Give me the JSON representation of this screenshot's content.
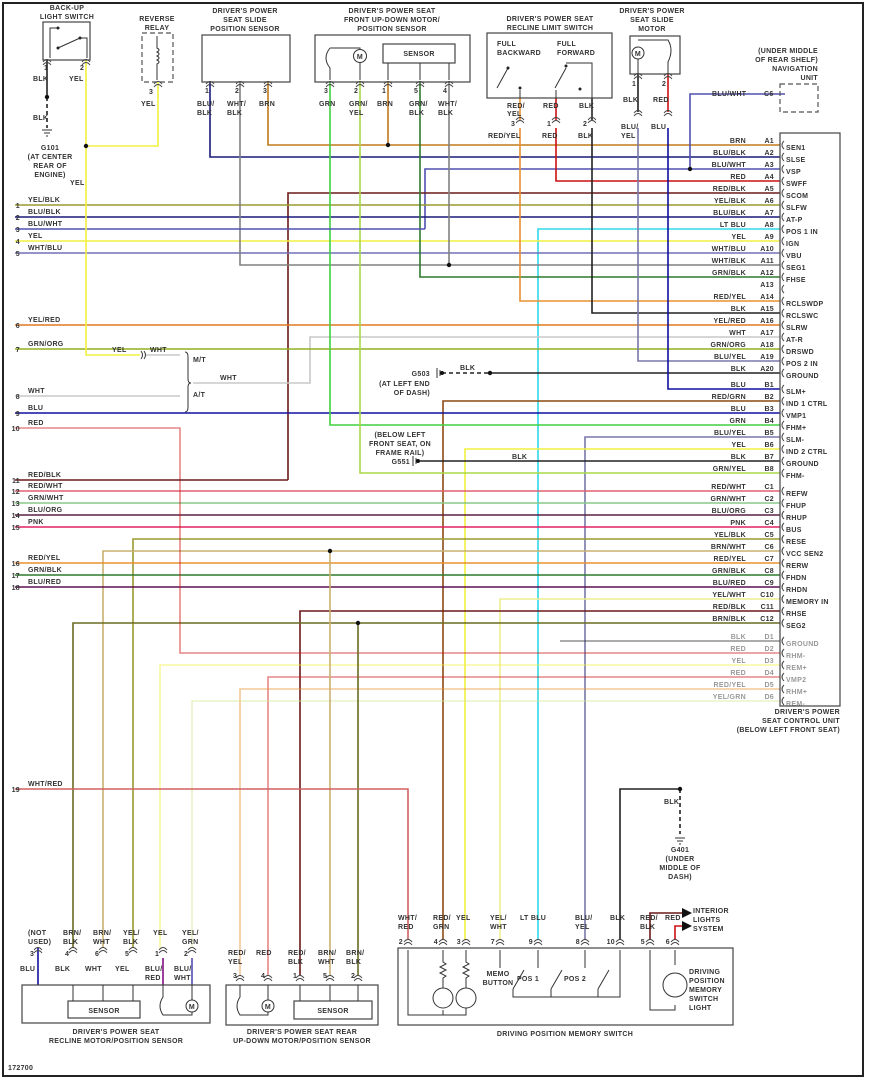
{
  "diagram_id": "172700",
  "wire_colors": {
    "BRN": "#c07a1a",
    "BLU/BLK": "#1a1a7a",
    "BLU/WHT": "#5050b0",
    "RED": "#cc1010",
    "RED/BLK": "#6a1a1a",
    "YEL/BLK": "#9a9a30",
    "LT BLU": "#30d8e8",
    "YEL": "#f2f040",
    "WHT/BLU": "#7070b8",
    "WHT/BLK": "#808080",
    "GRN/BLK": "#2e7a2e",
    "RED/YEL": "#e89030",
    "BLK": "#222222",
    "YEL/RED": "#e07a20",
    "WHT": "#c8c8c8",
    "GRN/ORG": "#90b020",
    "BLU/YEL": "#7878a8",
    "BLU": "#1010a0",
    "RED/GRN": "#8b4a13",
    "GRN": "#40d040",
    "GRN/YEL": "#a8d848",
    "RED/WHT": "#e06070",
    "GRN/WHT": "#88c888",
    "BLU/ORG": "#5a2040",
    "PNK": "#e02060",
    "BRN/WHT": "#c8b070",
    "BLU/RED": "#5a1050",
    "YEL/WHT": "#eeee90",
    "BRN/BLK": "#6a6a20",
    "YEL/GRN": "#d0e890",
    "WHT/RED": "#d06060"
  },
  "control_unit": {
    "title": [
      "DRIVER'S POWER",
      "SEAT CONTROL UNIT",
      "(BELOW LEFT FRONT SEAT)"
    ],
    "pins": [
      {
        "pin": "A1",
        "wire": "BRN",
        "func": "SEN1"
      },
      {
        "pin": "A2",
        "wire": "BLU/BLK",
        "func": "SLSE"
      },
      {
        "pin": "A3",
        "wire": "BLU/WHT",
        "func": "VSP"
      },
      {
        "pin": "A4",
        "wire": "RED",
        "func": "SWFF"
      },
      {
        "pin": "A5",
        "wire": "RED/BLK",
        "func": "SCOM"
      },
      {
        "pin": "A6",
        "wire": "YEL/BLK",
        "func": "SLFW"
      },
      {
        "pin": "A7",
        "wire": "BLU/BLK",
        "func": "AT-P"
      },
      {
        "pin": "A8",
        "wire": "LT BLU",
        "func": "POS 1 IN"
      },
      {
        "pin": "A9",
        "wire": "YEL",
        "func": "IGN"
      },
      {
        "pin": "A10",
        "wire": "WHT/BLU",
        "func": "VBU"
      },
      {
        "pin": "A11",
        "wire": "WHT/BLK",
        "func": "SEG1"
      },
      {
        "pin": "A12",
        "wire": "GRN/BLK",
        "func": "FHSE"
      },
      {
        "pin": "A13",
        "wire": "",
        "func": ""
      },
      {
        "pin": "A14",
        "wire": "RED/YEL",
        "func": "RCLSWDP"
      },
      {
        "pin": "A15",
        "wire": "BLK",
        "func": "RCLSWC"
      },
      {
        "pin": "A16",
        "wire": "YEL/RED",
        "func": "SLRW"
      },
      {
        "pin": "A17",
        "wire": "WHT",
        "func": "AT-R"
      },
      {
        "pin": "A18",
        "wire": "GRN/ORG",
        "func": "DRSWD"
      },
      {
        "pin": "A19",
        "wire": "BLU/YEL",
        "func": "POS 2 IN"
      },
      {
        "pin": "A20",
        "wire": "BLK",
        "func": "GROUND"
      },
      {
        "pin": "B1",
        "wire": "BLU",
        "func": "SLM+"
      },
      {
        "pin": "B2",
        "wire": "RED/GRN",
        "func": "IND 1 CTRL"
      },
      {
        "pin": "B3",
        "wire": "BLU",
        "func": "VMP1"
      },
      {
        "pin": "B4",
        "wire": "GRN",
        "func": "FHM+"
      },
      {
        "pin": "B5",
        "wire": "BLU/YEL",
        "func": "SLM-"
      },
      {
        "pin": "B6",
        "wire": "YEL",
        "func": "IND 2 CTRL"
      },
      {
        "pin": "B7",
        "wire": "BLK",
        "func": "GROUND"
      },
      {
        "pin": "B8",
        "wire": "GRN/YEL",
        "func": "FHM-"
      },
      {
        "pin": "C1",
        "wire": "RED/WHT",
        "func": "REFW"
      },
      {
        "pin": "C2",
        "wire": "GRN/WHT",
        "func": "FHUP"
      },
      {
        "pin": "C3",
        "wire": "BLU/ORG",
        "func": "RHUP"
      },
      {
        "pin": "C4",
        "wire": "PNK",
        "func": "BUS"
      },
      {
        "pin": "C5",
        "wire": "YEL/BLK",
        "func": "RESE"
      },
      {
        "pin": "C6",
        "wire": "BRN/WHT",
        "func": "VCC SEN2"
      },
      {
        "pin": "C7",
        "wire": "RED/YEL",
        "func": "RERW"
      },
      {
        "pin": "C8",
        "wire": "GRN/BLK",
        "func": "FHDN"
      },
      {
        "pin": "C9",
        "wire": "BLU/RED",
        "func": "RHDN"
      },
      {
        "pin": "C10",
        "wire": "YEL/WHT",
        "func": "MEMORY IN"
      },
      {
        "pin": "C11",
        "wire": "RED/BLK",
        "func": "RHSE"
      },
      {
        "pin": "C12",
        "wire": "BRN/BLK",
        "func": "SEG2"
      },
      {
        "pin": "D1",
        "wire": "BLK",
        "func": "GROUND"
      },
      {
        "pin": "D2",
        "wire": "RED",
        "func": "RHM-"
      },
      {
        "pin": "D3",
        "wire": "YEL",
        "func": "REM+"
      },
      {
        "pin": "D4",
        "wire": "RED",
        "func": "VMP2"
      },
      {
        "pin": "D5",
        "wire": "RED/YEL",
        "func": "RHM+"
      },
      {
        "pin": "D6",
        "wire": "YEL/GRN",
        "func": "REM-"
      }
    ]
  },
  "left_wires": [
    {
      "num": "1",
      "label": "YEL/BLK"
    },
    {
      "num": "2",
      "label": "BLU/BLK"
    },
    {
      "num": "3",
      "label": "BLU/WHT"
    },
    {
      "num": "4",
      "label": "YEL"
    },
    {
      "num": "5",
      "label": "WHT/BLU"
    },
    {
      "num": "6",
      "label": "YEL/RED"
    },
    {
      "num": "7",
      "label": "GRN/ORG"
    },
    {
      "num": "8",
      "label": "WHT"
    },
    {
      "num": "9",
      "label": "BLU"
    },
    {
      "num": "10",
      "label": "RED"
    },
    {
      "num": "11",
      "label": "RED/BLK"
    },
    {
      "num": "12",
      "label": "RED/WHT"
    },
    {
      "num": "13",
      "label": "GRN/WHT"
    },
    {
      "num": "14",
      "label": "BLU/ORG"
    },
    {
      "num": "15",
      "label": "PNK"
    },
    {
      "num": "16",
      "label": "RED/YEL"
    },
    {
      "num": "17",
      "label": "GRN/BLK"
    },
    {
      "num": "18",
      "label": "BLU/RED"
    },
    {
      "num": "19",
      "label": "WHT/RED"
    }
  ],
  "transmission": {
    "yel": "YEL",
    "wht": "WHT",
    "mt": "M/T",
    "at": "A/T",
    "wht_out": "WHT"
  },
  "components": {
    "backup_switch": {
      "title": [
        "BACK-UP",
        "LIGHT SWITCH"
      ],
      "pins": [
        "1",
        "2"
      ],
      "wires": [
        "BLK",
        "YEL"
      ],
      "blk2": "BLK",
      "yel2": "YEL"
    },
    "reverse_relay": {
      "title": [
        "REVERSE",
        "RELAY"
      ],
      "pin": "3",
      "wire": "YEL"
    },
    "slide_sensor": {
      "title": [
        "DRIVER'S POWER",
        "SEAT SLIDE",
        "POSITION SENSOR"
      ],
      "pins": [
        "1",
        "2",
        "3"
      ],
      "wires": [
        [
          "BLU/",
          "BLK"
        ],
        [
          "WHT/",
          "BLK"
        ],
        [
          "BRN"
        ]
      ]
    },
    "front_updown": {
      "title": [
        "DRIVER'S POWER SEAT",
        "FRONT UP-DOWN MOTOR/",
        "POSITION SENSOR"
      ],
      "sensor": "SENSOR",
      "motor": "M",
      "pins": [
        "3",
        "2",
        "1",
        "5",
        "4"
      ],
      "wires": [
        [
          "GRN"
        ],
        [
          "GRN/",
          "YEL"
        ],
        [
          "BRN"
        ],
        [
          "GRN/",
          "BLK"
        ],
        [
          "WHT/",
          "BLK"
        ]
      ]
    },
    "recline_limit": {
      "title": [
        "DRIVER'S POWER SEAT",
        "RECLINE LIMIT SWITCH"
      ],
      "full_backward": [
        "FULL",
        "BACKWARD"
      ],
      "full_forward": [
        "FULL",
        "FORWARD"
      ],
      "pins": [
        "3",
        "1",
        "2"
      ],
      "wires": [
        [
          "RED/",
          "YEL"
        ],
        [
          "RED"
        ],
        [
          "BLK"
        ]
      ],
      "wires_out": [
        "RED/YEL",
        "RED",
        "BLK"
      ]
    },
    "slide_motor": {
      "title": [
        "DRIVER'S POWER",
        "SEAT SLIDE",
        "MOTOR"
      ],
      "motor": "M",
      "pins": [
        "1",
        "2"
      ],
      "wires": [
        "BLK",
        "RED"
      ],
      "wires_out": [
        [
          "BLU/",
          "YEL"
        ],
        [
          "BLU"
        ]
      ]
    },
    "nav_unit": {
      "title": [
        "(UNDER MIDDLE",
        "OF REAR SHELF)",
        "NAVIGATION",
        "UNIT"
      ],
      "pin": "C6",
      "wire": "BLU/WHT"
    },
    "recline_motor": {
      "title": [
        "DRIVER'S POWER SEAT",
        "RECLINE MOTOR/POSITION SENSOR"
      ],
      "sensor": "SENSOR",
      "motor": "M",
      "pins": [
        "3",
        "4",
        "6",
        "5",
        "1",
        "2"
      ],
      "wires_in": [
        [
          "(NOT",
          "USED)"
        ],
        [
          "BRN/",
          "BLK"
        ],
        [
          "BRN/",
          "WHT"
        ],
        [
          "YEL/",
          "BLK"
        ],
        [
          "YEL"
        ],
        [
          "YEL/",
          "GRN"
        ]
      ],
      "wires_out": [
        [
          "BLU"
        ],
        [
          "BLK"
        ],
        [
          "WHT"
        ],
        [
          "YEL"
        ],
        [
          "BLU/",
          "RED"
        ],
        [
          "BLU/",
          "WHT"
        ]
      ]
    },
    "rear_updown": {
      "title": [
        "DRIVER'S POWER SEAT REAR",
        "UP-DOWN MOTOR/POSITION SENSOR"
      ],
      "sensor": "SENSOR",
      "motor": "M",
      "pins": [
        "3",
        "4",
        "1",
        "5",
        "2"
      ],
      "wires": [
        [
          "RED/",
          "YEL"
        ],
        [
          "RED"
        ],
        [
          "RED/",
          "BLK"
        ],
        [
          "BRN/",
          "WHT"
        ],
        [
          "BRN/",
          "BLK"
        ]
      ]
    },
    "memory_switch": {
      "title": "DRIVING POSITION MEMORY SWITCH",
      "pins": [
        "2",
        "4",
        "3",
        "7",
        "9",
        "8",
        "10",
        "5",
        "6"
      ],
      "wires": [
        [
          "WHT/",
          "RED"
        ],
        [
          "RED/",
          "GRN"
        ],
        [
          "YEL"
        ],
        [
          "YEL/",
          "WHT"
        ],
        [
          "LT BLU"
        ],
        [
          "BLU/",
          "YEL"
        ],
        [
          "BLK"
        ],
        [
          "RED/",
          "BLK"
        ],
        [
          "RED"
        ]
      ],
      "memo": [
        "MEMO",
        "BUTTON"
      ],
      "pos1": "POS 1",
      "pos2": "POS 2",
      "light": [
        "DRIVING",
        "POSITION",
        "MEMORY",
        "SWITCH",
        "LIGHT"
      ],
      "interior": [
        "INTERIOR",
        "LIGHTS",
        "SYSTEM"
      ]
    }
  },
  "grounds": {
    "g101": {
      "lines": [
        "G101",
        "(AT CENTER",
        "REAR OF",
        "ENGINE)"
      ]
    },
    "g503": {
      "id": "G503",
      "lines": [
        "(AT LEFT END",
        "OF DASH)"
      ],
      "wire": "BLK"
    },
    "g551": {
      "id": "G551",
      "lines": [
        "(BELOW LEFT",
        "FRONT SEAT, ON",
        "FRAME RAIL)"
      ],
      "wire": "BLK"
    },
    "g401": {
      "lines": [
        "G401",
        "(UNDER",
        "MIDDLE OF",
        "DASH)"
      ],
      "wire": "BLK"
    }
  }
}
